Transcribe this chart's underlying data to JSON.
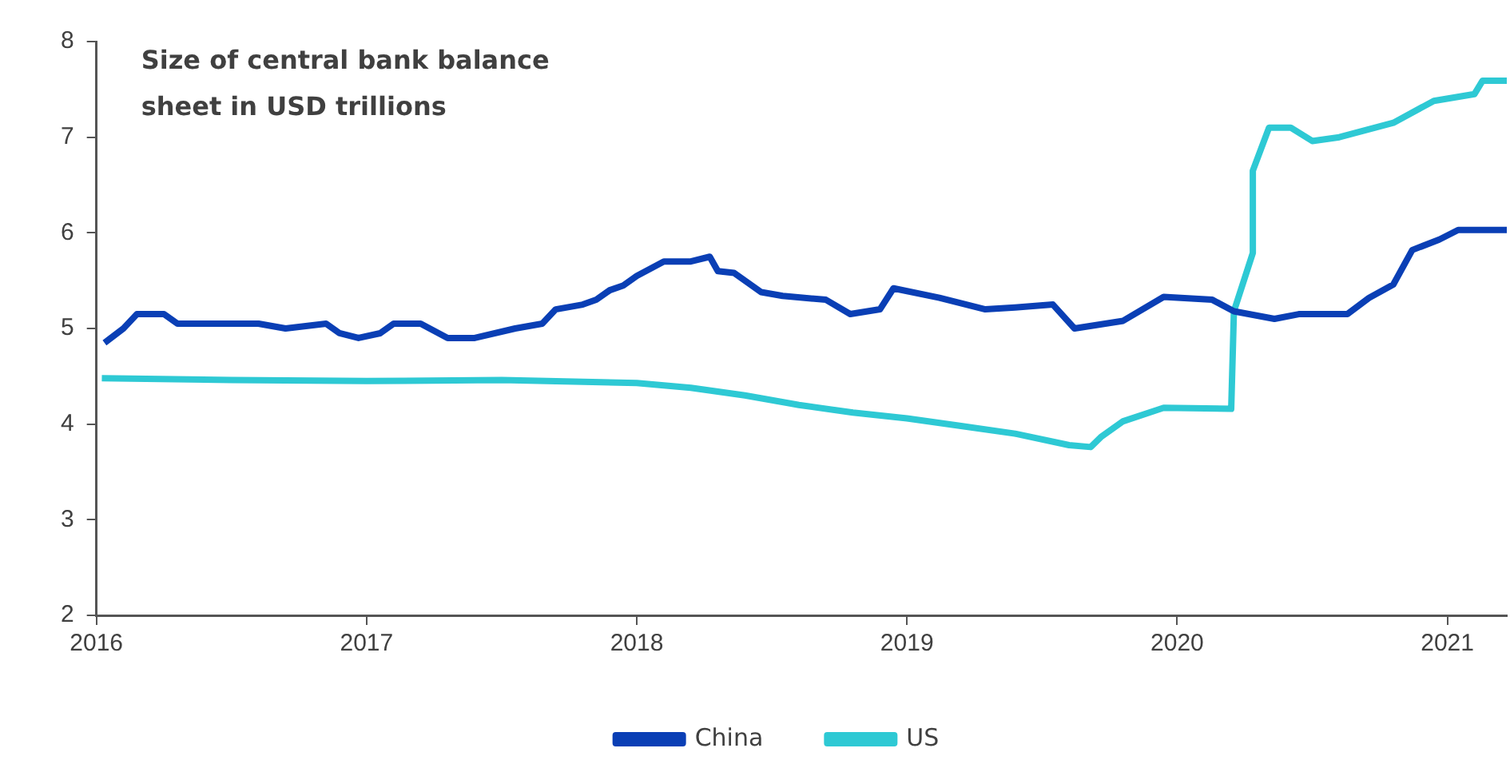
{
  "chart_data": {
    "type": "line",
    "title": "Size of central bank balance sheet in USD trillions",
    "xlim": [
      2016,
      2021.22
    ],
    "xticks": [
      2016,
      2017,
      2018,
      2019,
      2020,
      2021
    ],
    "ylim": [
      2,
      8
    ],
    "yticks": [
      2,
      3,
      4,
      5,
      6,
      7,
      8
    ],
    "grid": false,
    "legend": "bottom",
    "marker": "none",
    "line_style": "solid",
    "series": [
      {
        "name": "China",
        "color": "#0a3fb5",
        "x": [
          2016.03,
          2016.1,
          2016.15,
          2016.25,
          2016.3,
          2016.5,
          2016.6,
          2016.7,
          2016.85,
          2016.9,
          2016.97,
          2017.05,
          2017.1,
          2017.2,
          2017.3,
          2017.4,
          2017.55,
          2017.65,
          2017.7,
          2017.8,
          2017.85,
          2017.9,
          2017.95,
          2018.0,
          2018.1,
          2018.2,
          2018.27,
          2018.3,
          2018.36,
          2018.46,
          2018.54,
          2018.7,
          2018.79,
          2018.9,
          2018.95,
          2019.12,
          2019.29,
          2019.4,
          2019.54,
          2019.62,
          2019.8,
          2019.95,
          2020.13,
          2020.21,
          2020.36,
          2020.45,
          2020.63,
          2020.71,
          2020.8,
          2020.87,
          2020.97,
          2021.04,
          2021.22
        ],
        "values": [
          4.85,
          5.0,
          5.15,
          5.15,
          5.05,
          5.05,
          5.05,
          5.0,
          5.05,
          4.95,
          4.9,
          4.95,
          5.05,
          5.05,
          4.9,
          4.9,
          5.0,
          5.05,
          5.2,
          5.25,
          5.3,
          5.4,
          5.45,
          5.55,
          5.7,
          5.7,
          5.75,
          5.6,
          5.58,
          5.38,
          5.34,
          5.3,
          5.15,
          5.2,
          5.42,
          5.32,
          5.2,
          5.22,
          5.25,
          5.0,
          5.08,
          5.33,
          5.3,
          5.18,
          5.1,
          5.15,
          5.15,
          5.32,
          5.46,
          5.82,
          5.93,
          6.03,
          6.03
        ]
      },
      {
        "name": "US",
        "color": "#2ec9d4",
        "x": [
          2016.02,
          2016.5,
          2017.0,
          2017.5,
          2018.0,
          2018.2,
          2018.4,
          2018.6,
          2018.8,
          2019.0,
          2019.2,
          2019.4,
          2019.6,
          2019.68,
          2019.72,
          2019.8,
          2019.95,
          2020.2,
          2020.21,
          2020.28,
          2020.28,
          2020.34,
          2020.42,
          2020.5,
          2020.6,
          2020.8,
          2020.95,
          2021.1,
          2021.13,
          2021.22
        ],
        "values": [
          4.48,
          4.46,
          4.45,
          4.46,
          4.43,
          4.38,
          4.3,
          4.2,
          4.12,
          4.06,
          3.98,
          3.9,
          3.78,
          3.76,
          3.87,
          4.03,
          4.17,
          4.16,
          5.18,
          5.79,
          6.65,
          7.1,
          7.1,
          6.96,
          7.0,
          7.15,
          7.38,
          7.45,
          7.59,
          7.59
        ]
      }
    ]
  }
}
